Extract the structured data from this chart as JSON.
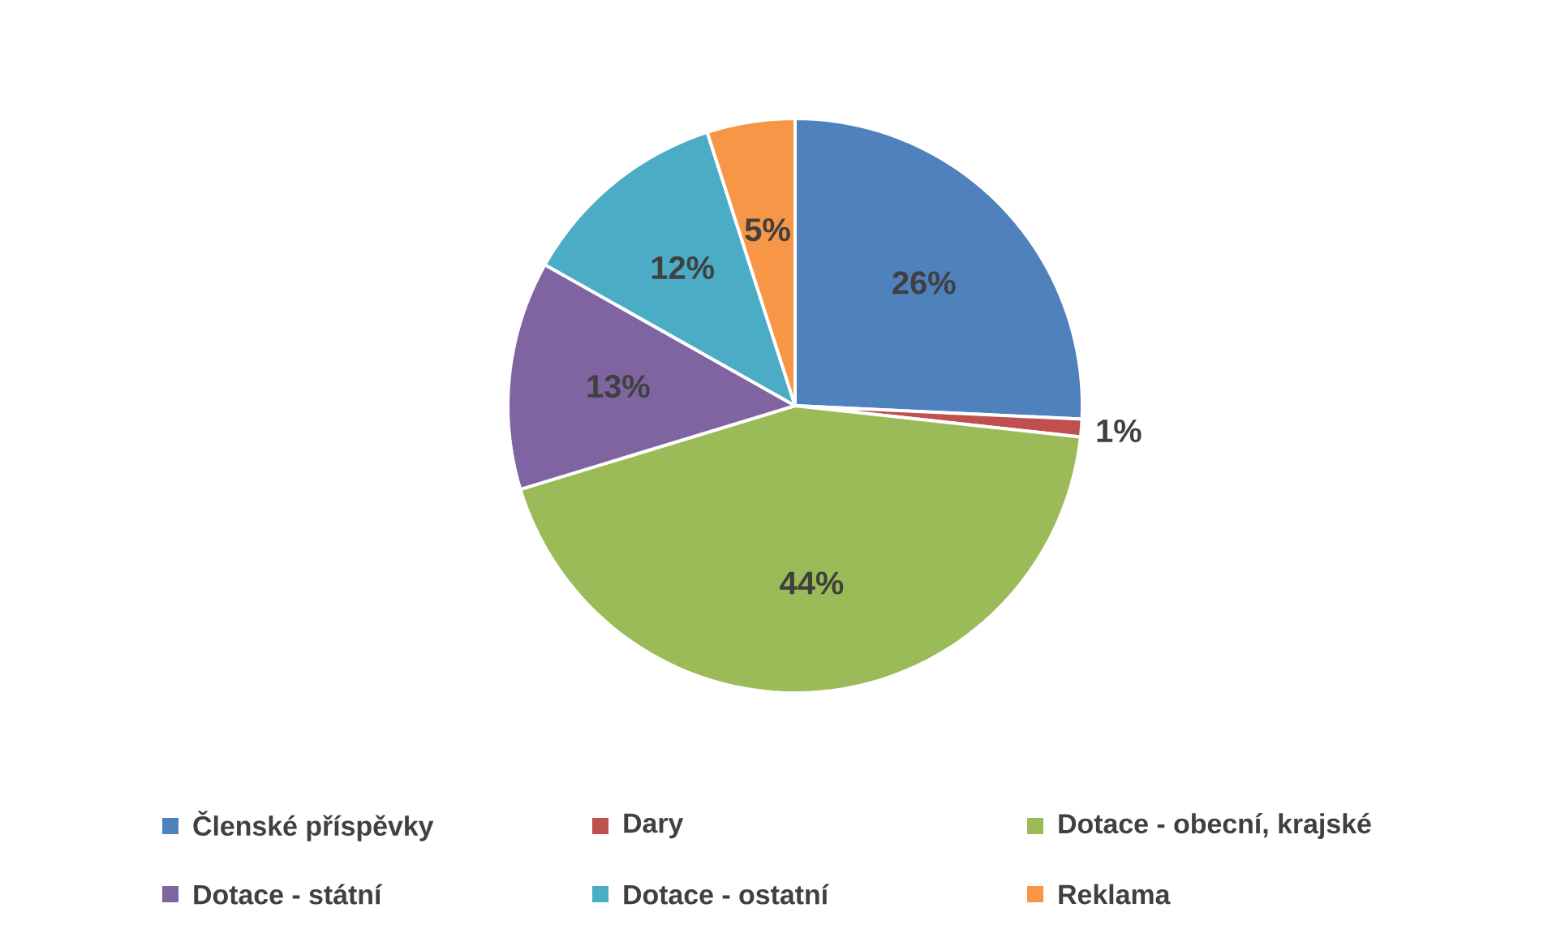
{
  "chart_data": {
    "type": "pie",
    "categories": [
      "Členské příspěvky",
      "Dary",
      "Dotace - obecní, krajské",
      "Dotace - státní",
      "Dotace - ostatní",
      "Reklama"
    ],
    "values": [
      26,
      1,
      44,
      13,
      12,
      5
    ],
    "colors": [
      "#4f81bd",
      "#c0504d",
      "#9bbb59",
      "#8064a2",
      "#4bacc6",
      "#f79646"
    ],
    "value_labels": [
      "26%",
      "1%",
      "44%",
      "13%",
      "12%",
      "5%"
    ],
    "legend": "bottom"
  }
}
